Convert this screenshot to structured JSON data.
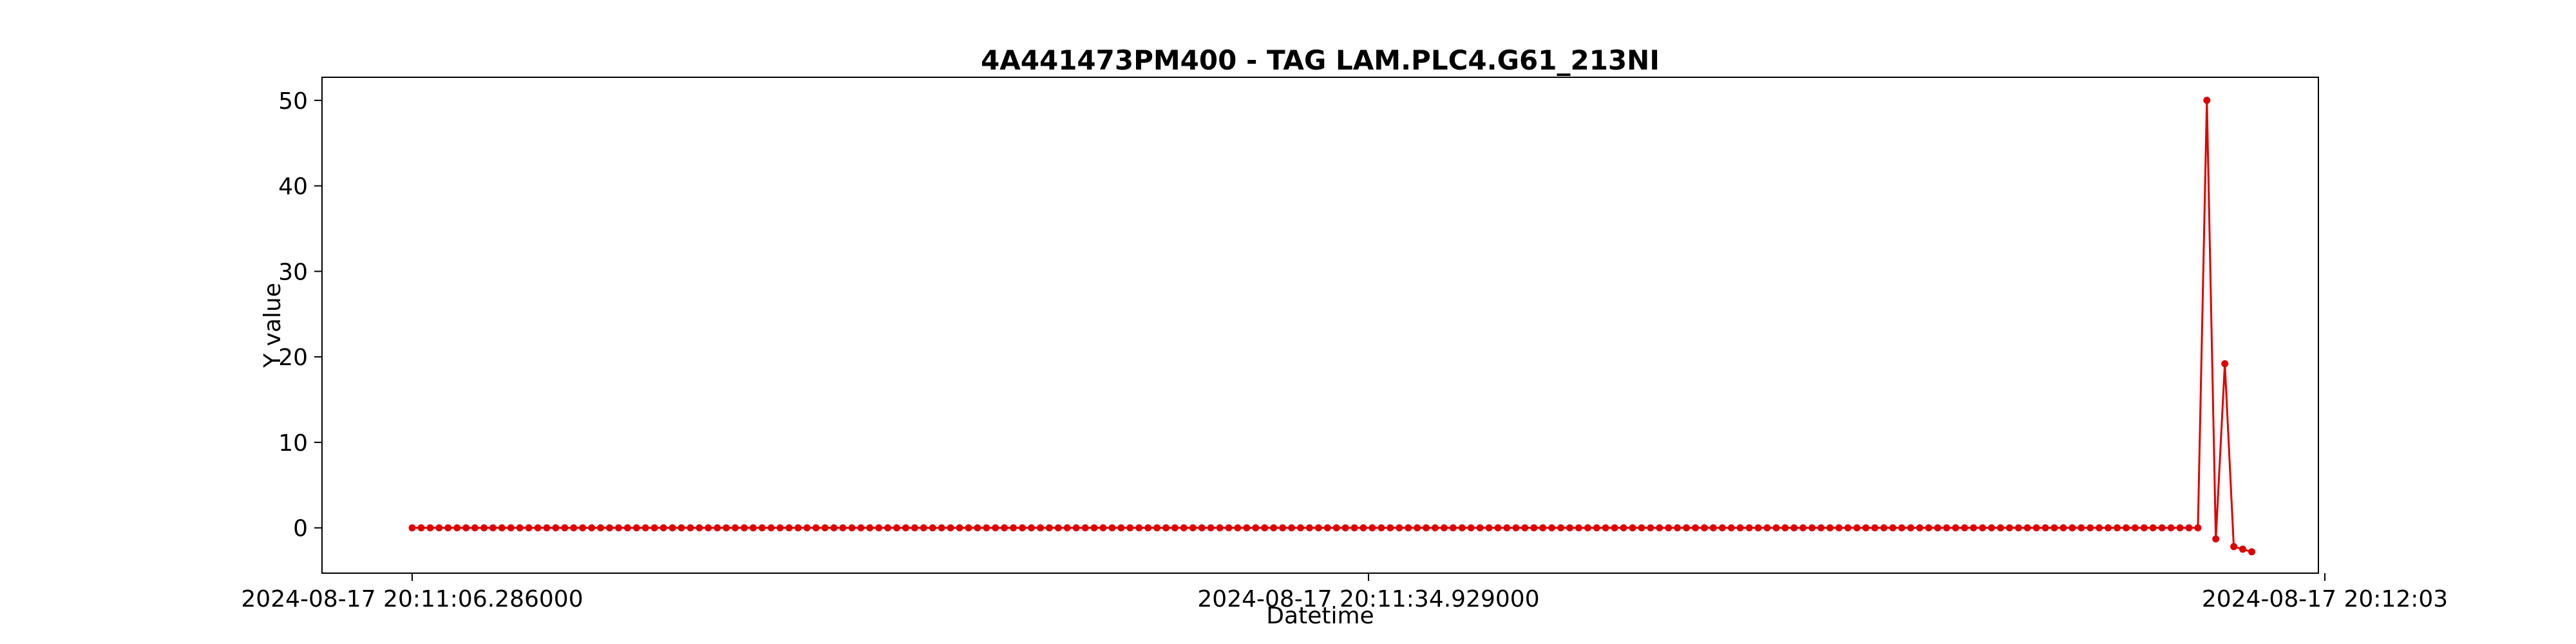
{
  "chart_data": {
    "type": "line",
    "title": "4A441473PM400 - TAG LAM.PLC4.G61_213NI",
    "xlabel": "Datetime",
    "ylabel": "Y value",
    "ylim": [
      -5.3,
      52.7
    ],
    "y_ticks": [
      0,
      10,
      20,
      30,
      40,
      50
    ],
    "x_ticks": [
      {
        "label": "2024-08-17 20:11:06.286000",
        "index": 0
      },
      {
        "label": "2024-08-17 20:11:34.929000",
        "index": 101
      },
      {
        "label": "2024-08-17 20:12:03",
        "index": 202
      }
    ],
    "grid": false,
    "legend": "none",
    "series": [
      {
        "color": "#e00000",
        "marker": "circle",
        "values": [
          0,
          0,
          0,
          0,
          0,
          0,
          0,
          0,
          0,
          0,
          0,
          0,
          0,
          0,
          0,
          0,
          0,
          0,
          0,
          0,
          0,
          0,
          0,
          0,
          0,
          0,
          0,
          0,
          0,
          0,
          0,
          0,
          0,
          0,
          0,
          0,
          0,
          0,
          0,
          0,
          0,
          0,
          0,
          0,
          0,
          0,
          0,
          0,
          0,
          0,
          0,
          0,
          0,
          0,
          0,
          0,
          0,
          0,
          0,
          0,
          0,
          0,
          0,
          0,
          0,
          0,
          0,
          0,
          0,
          0,
          0,
          0,
          0,
          0,
          0,
          0,
          0,
          0,
          0,
          0,
          0,
          0,
          0,
          0,
          0,
          0,
          0,
          0,
          0,
          0,
          0,
          0,
          0,
          0,
          0,
          0,
          0,
          0,
          0,
          0,
          0,
          0,
          0,
          0,
          0,
          0,
          0,
          0,
          0,
          0,
          0,
          0,
          0,
          0,
          0,
          0,
          0,
          0,
          0,
          0,
          0,
          0,
          0,
          0,
          0,
          0,
          0,
          0,
          0,
          0,
          0,
          0,
          0,
          0,
          0,
          0,
          0,
          0,
          0,
          0,
          0,
          0,
          0,
          0,
          0,
          0,
          0,
          0,
          0,
          0,
          0,
          0,
          0,
          0,
          0,
          0,
          0,
          0,
          0,
          0,
          0,
          0,
          0,
          0,
          0,
          0,
          0,
          0,
          0,
          0,
          0,
          0,
          0,
          0,
          0,
          0,
          0,
          0,
          0,
          0,
          0,
          0,
          0,
          0,
          0,
          0,
          0,
          0,
          0,
          0,
          0,
          0,
          0,
          0,
          0,
          0,
          0,
          0,
          0,
          0,
          50,
          -1.3,
          19.2,
          -2.2,
          -2.5,
          -2.8
        ]
      }
    ]
  }
}
